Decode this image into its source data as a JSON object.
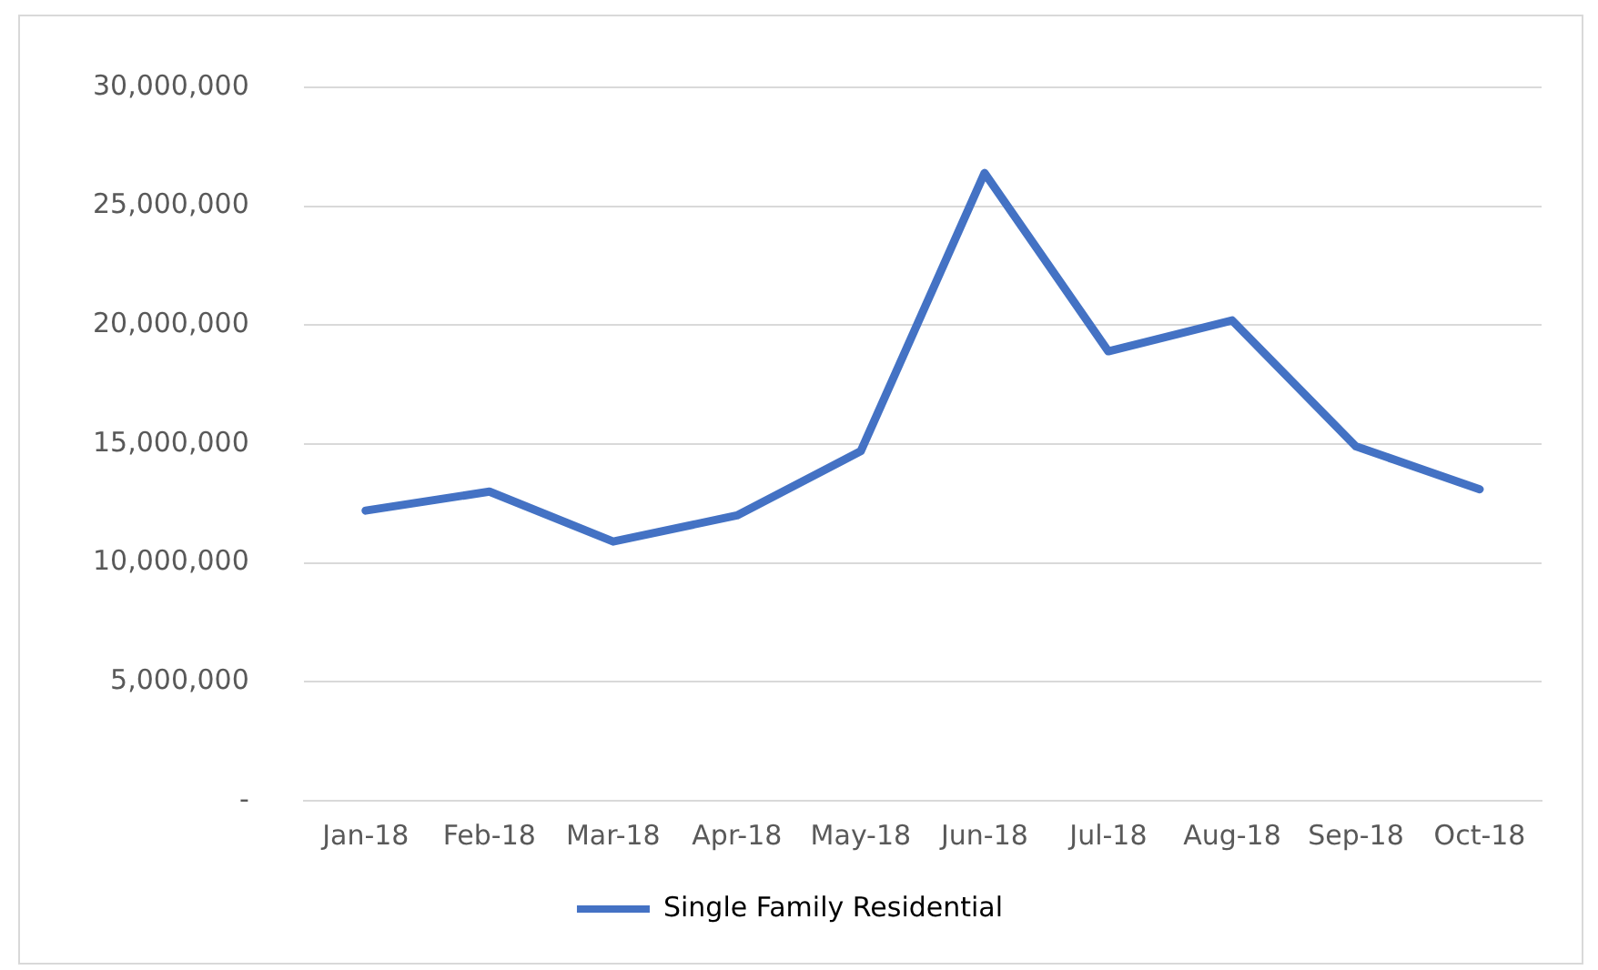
{
  "chart_data": {
    "type": "line",
    "categories": [
      "Jan-18",
      "Feb-18",
      "Mar-18",
      "Apr-18",
      "May-18",
      "Jun-18",
      "Jul-18",
      "Aug-18",
      "Sep-18",
      "Oct-18"
    ],
    "series": [
      {
        "name": "Single Family Residential",
        "color": "#4472c4",
        "values": [
          12200000,
          13000000,
          10900000,
          12000000,
          14700000,
          26400000,
          18900000,
          20200000,
          14900000,
          13100000
        ]
      }
    ],
    "ylim": [
      0,
      30000000
    ],
    "yticks": [
      {
        "value": 0,
        "label": "-"
      },
      {
        "value": 5000000,
        "label": "5,000,000"
      },
      {
        "value": 10000000,
        "label": "10,000,000"
      },
      {
        "value": 15000000,
        "label": "15,000,000"
      },
      {
        "value": 20000000,
        "label": "20,000,000"
      },
      {
        "value": 25000000,
        "label": "25,000,000"
      },
      {
        "value": 30000000,
        "label": "30,000,000"
      }
    ],
    "grid": "y",
    "legend": "bottom",
    "marker": "none",
    "line_style": "solid"
  }
}
